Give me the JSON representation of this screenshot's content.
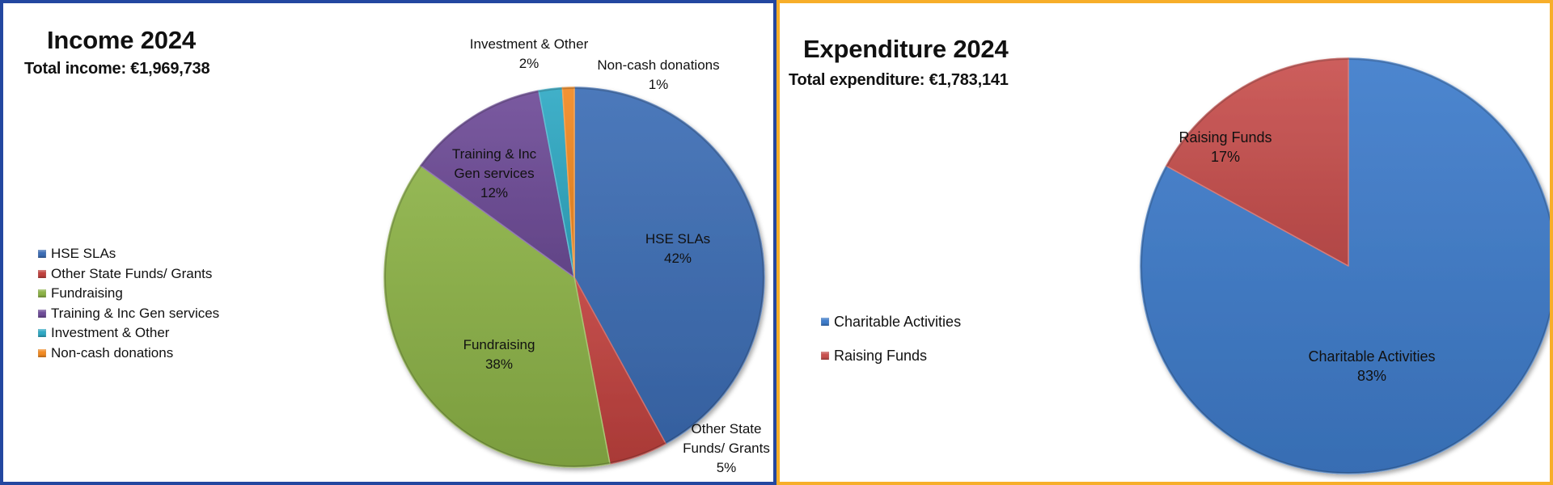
{
  "income": {
    "title": "Income 2024",
    "subtitle": "Total income: €1,969,738",
    "legend": [
      {
        "label": "HSE SLAs",
        "color": "#3C6DB5"
      },
      {
        "label": "Other State Funds/ Grants",
        "color": "#C0413D"
      },
      {
        "label": "Fundraising",
        "color": "#8CB246"
      },
      {
        "label": "Training & Inc Gen services",
        "color": "#6E4C98"
      },
      {
        "label": "Investment & Other",
        "color": "#2FA9C4"
      },
      {
        "label": "Non-cash donations",
        "color": "#F28A22"
      }
    ],
    "slice_labels": [
      {
        "line1": "HSE SLAs",
        "line2": "",
        "pct": "42%"
      },
      {
        "line1": "Other State",
        "line2": "Funds/ Grants",
        "pct": "5%"
      },
      {
        "line1": "Fundraising",
        "line2": "",
        "pct": "38%"
      },
      {
        "line1": "Training & Inc",
        "line2": "Gen services",
        "pct": "12%"
      },
      {
        "line1": "Investment & Other",
        "line2": "",
        "pct": "2%"
      },
      {
        "line1": "Non-cash donations",
        "line2": "",
        "pct": "1%"
      }
    ]
  },
  "expenditure": {
    "title": "Expenditure 2024",
    "subtitle": "Total expenditure: €1,783,141",
    "legend": [
      {
        "label": "Charitable Activities",
        "color": "#3E7CCB"
      },
      {
        "label": "Raising Funds",
        "color": "#C9504E"
      }
    ],
    "slice_labels": [
      {
        "line1": "Charitable Activities",
        "line2": "",
        "pct": "83%"
      },
      {
        "line1": "Raising Funds",
        "line2": "",
        "pct": "17%"
      }
    ]
  },
  "chart_data": [
    {
      "type": "pie",
      "title": "Income 2024",
      "subtitle": "Total income: €1,969,738",
      "categories": [
        "HSE SLAs",
        "Other State Funds/ Grants",
        "Fundraising",
        "Training & Inc Gen services",
        "Investment & Other",
        "Non-cash donations"
      ],
      "values": [
        42,
        5,
        38,
        12,
        2,
        1
      ],
      "unit": "%",
      "colors": [
        "#3C6DB5",
        "#C0413D",
        "#8CB246",
        "#6E4C98",
        "#2FA9C4",
        "#F28A22"
      ],
      "start_angle": "12 o'clock, clockwise",
      "legend_position": "left"
    },
    {
      "type": "pie",
      "title": "Expenditure 2024",
      "subtitle": "Total expenditure: €1,783,141",
      "categories": [
        "Charitable Activities",
        "Raising Funds"
      ],
      "values": [
        83,
        17
      ],
      "unit": "%",
      "colors": [
        "#3E7CCB",
        "#C9504E"
      ],
      "start_angle": "12 o'clock, clockwise",
      "legend_position": "left"
    }
  ]
}
